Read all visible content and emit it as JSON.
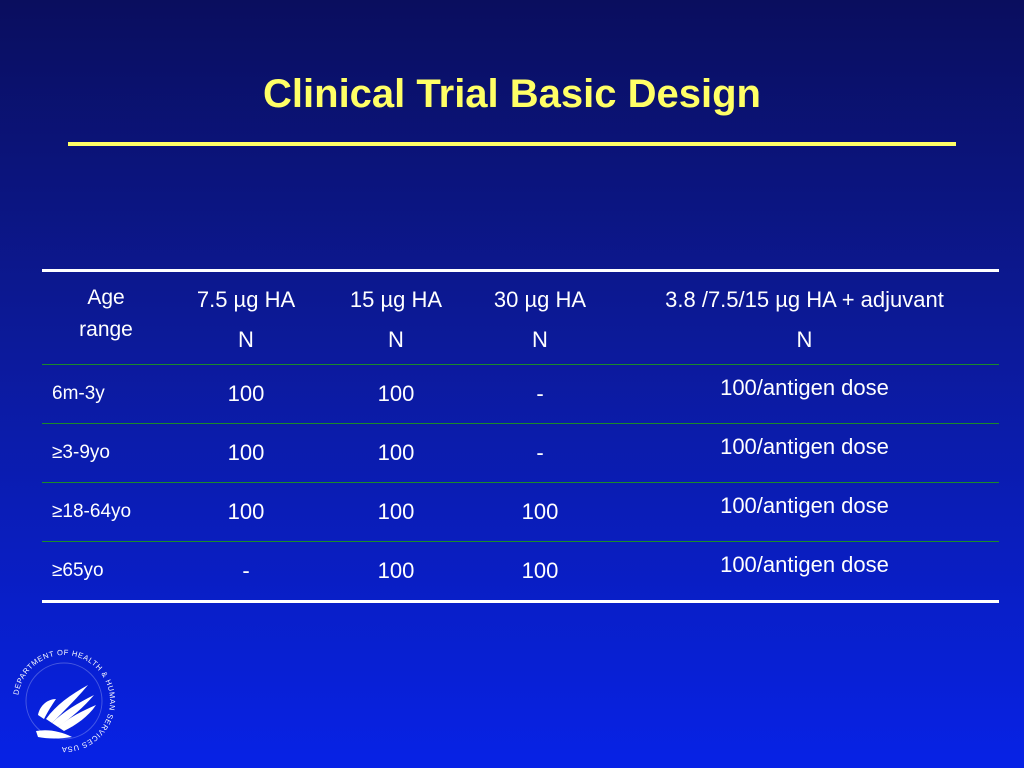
{
  "slide": {
    "title": "Clinical Trial Basic Design"
  },
  "table": {
    "headers": [
      {
        "line1": "Age",
        "line2": "range"
      },
      {
        "line1": "7.5 µg HA",
        "line2": "N"
      },
      {
        "line1": "15 µg HA",
        "line2": "N"
      },
      {
        "line1": "30 µg HA",
        "line2": "N"
      },
      {
        "line1": "3.8 /7.5/15 µg HA + adjuvant",
        "line2": "N"
      }
    ],
    "rows": [
      [
        "6m-3y",
        "100",
        "100",
        "-",
        "100/antigen dose"
      ],
      [
        "≥3-9yo",
        "100",
        "100",
        "-",
        "100/antigen dose"
      ],
      [
        "≥18-64yo",
        "100",
        "100",
        "100",
        "100/antigen dose"
      ],
      [
        "≥65yo",
        "-",
        "100",
        "100",
        "100/antigen dose"
      ]
    ]
  },
  "logo": {
    "icon": "hhs-seal-icon",
    "text": "DEPARTMENT OF HEALTH & HUMAN SERVICES USA"
  }
}
